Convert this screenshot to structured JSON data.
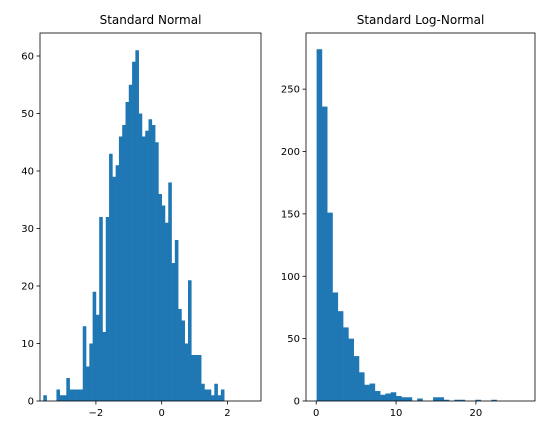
{
  "chart_data": [
    {
      "type": "histogram",
      "title": "Standard Normal",
      "xlabel": "",
      "ylabel": "",
      "bar_color": "#1f77b4",
      "bin_start": -3.6,
      "bin_width": 0.1,
      "counts": [
        1,
        0,
        0,
        0,
        2,
        1,
        1,
        4,
        2,
        2,
        2,
        2,
        13,
        6,
        10,
        19,
        15,
        32,
        12,
        32,
        43,
        39,
        41,
        46,
        48,
        52,
        55,
        59,
        61,
        50,
        46,
        47,
        49,
        48,
        45,
        36,
        34,
        31,
        38,
        24,
        28,
        16,
        14,
        10,
        21,
        8,
        8,
        8,
        3,
        2,
        2,
        1,
        3,
        1,
        2
      ],
      "xlim": [
        -3.7,
        3.02
      ],
      "ylim": [
        0,
        64
      ],
      "xticks": [
        -2,
        0,
        2
      ],
      "xtick_labels": [
        "−2",
        "0",
        "2"
      ],
      "yticks": [
        0,
        10,
        20,
        30,
        40,
        50,
        60
      ],
      "ytick_labels": [
        "0",
        "10",
        "20",
        "30",
        "40",
        "50",
        "60"
      ]
    },
    {
      "type": "histogram",
      "title": "Standard Log-Normal",
      "xlabel": "",
      "ylabel": "",
      "bar_color": "#1f77b4",
      "bin_start": 0.05,
      "bin_width": 0.663,
      "counts": [
        282,
        236,
        151,
        87,
        72,
        59,
        50,
        36,
        23,
        13,
        14,
        8,
        5,
        6,
        7,
        4,
        3,
        3,
        0,
        2,
        0,
        0,
        3,
        3,
        1,
        0,
        1,
        1,
        0,
        0,
        1,
        0,
        0,
        1,
        0,
        0,
        0,
        0,
        0,
        0,
        0,
        0,
        0,
        0,
        0,
        0,
        0,
        0,
        0,
        0,
        1,
        0
      ],
      "xlim": [
        -1.28,
        27.4
      ],
      "ylim": [
        0,
        295
      ],
      "xticks": [
        0,
        10,
        20
      ],
      "xtick_labels": [
        "0",
        "10",
        "20"
      ],
      "yticks": [
        0,
        50,
        100,
        150,
        200,
        250
      ],
      "ytick_labels": [
        "0",
        "50",
        "100",
        "150",
        "200",
        "250"
      ]
    }
  ]
}
